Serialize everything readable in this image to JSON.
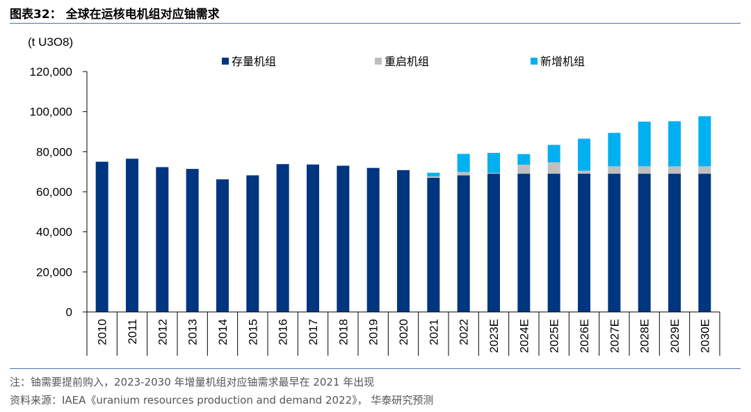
{
  "title": "图表32： 全球在运核电机组对应铀需求",
  "note": "注：铀需要提前购入，2023-2030 年增量机组对应铀需求最早在 2021 年出现",
  "source": "资料来源：IAEA《uranium resources production and demand 2022》， 华泰研究预测",
  "colors": {
    "existing": "#003580",
    "restart": "#bfbfbf",
    "new": "#00b0f0",
    "rule": "#4a6fa5"
  },
  "chart_data": {
    "type": "bar",
    "stacked": true,
    "ylabel": "(t U3O8)",
    "ylim": [
      0,
      120000
    ],
    "yticks": [
      "0",
      "20,000",
      "40,000",
      "60,000",
      "80,000",
      "100,000",
      "120,000"
    ],
    "ytick_values": [
      0,
      20000,
      40000,
      60000,
      80000,
      100000,
      120000
    ],
    "legend_position": "top",
    "grid": false,
    "categories": [
      "2010",
      "2011",
      "2012",
      "2013",
      "2014",
      "2015",
      "2016",
      "2017",
      "2018",
      "2019",
      "2020",
      "2021",
      "2022",
      "2023E",
      "2024E",
      "2025E",
      "2026E",
      "2027E",
      "2028E",
      "2029E",
      "2030E"
    ],
    "series": [
      {
        "name": "存量机组",
        "color": "#003580",
        "values": [
          75000,
          76500,
          72300,
          71400,
          66200,
          68200,
          73800,
          73600,
          73000,
          71900,
          70800,
          67000,
          68200,
          69000,
          69000,
          69000,
          69000,
          69000,
          69000,
          69000,
          69000
        ]
      },
      {
        "name": "重启机组",
        "color": "#bfbfbf",
        "values": [
          0,
          0,
          0,
          0,
          0,
          0,
          0,
          0,
          0,
          0,
          0,
          700,
          1700,
          400,
          4500,
          5700,
          1500,
          3700,
          3700,
          3700,
          3700
        ]
      },
      {
        "name": "新增机组",
        "color": "#00b0f0",
        "values": [
          0,
          0,
          0,
          0,
          0,
          0,
          0,
          0,
          0,
          0,
          0,
          1800,
          9000,
          10000,
          5300,
          8700,
          16000,
          16700,
          22300,
          22500,
          25000
        ]
      }
    ]
  }
}
